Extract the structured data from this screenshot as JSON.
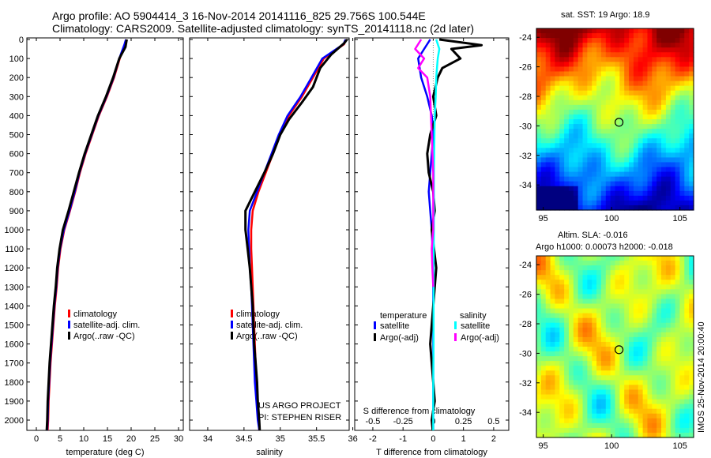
{
  "title": {
    "line1": "Argo profile: AO 5904414_3 16-Nov-2014 20141116_825 29.756S 100.544E",
    "line2": "Climatology: CARS2009. Satellite-adjusted climatology: synTS_20141118.nc (2d later)"
  },
  "colors": {
    "climatology": "#ff0000",
    "satellite": "#0000ff",
    "argo": "#000000",
    "sal_satellite": "#00ffff",
    "sal_argo": "#ff00ff"
  },
  "footer": {
    "project": "US ARGO PROJECT",
    "pi": "PI: STEPHEN RISER",
    "credit": "IMOS 25-Nov-2014 20:00:40"
  },
  "maps": {
    "sst_title": "sat. SST: 19  Argo: 18.9",
    "sla_title1": "Altim. SLA: -0.016",
    "sla_title2": "Argo h1000: 0.00073  h2000: -0.018",
    "xticks": [
      "95",
      "100",
      "105"
    ],
    "yticks": [
      "-24",
      "-26",
      "-28",
      "-30",
      "-32",
      "-34"
    ],
    "marker": {
      "lon": 100.544,
      "lat": -29.756
    }
  },
  "chart_data": [
    {
      "type": "line",
      "xlabel": "temperature (deg C)",
      "ylabel": "",
      "xlim": [
        -2,
        31
      ],
      "ylim": [
        2100,
        0
      ],
      "xticks": [
        "0",
        "5",
        "10",
        "15",
        "20",
        "25",
        "30"
      ],
      "yticks": [
        "0",
        "100",
        "200",
        "300",
        "400",
        "500",
        "600",
        "700",
        "800",
        "900",
        "1000",
        "1100",
        "1200",
        "1300",
        "1400",
        "1500",
        "1600",
        "1700",
        "1800",
        "1900",
        "2000"
      ],
      "legend": [
        "climatology",
        "satellite-adj. clim.",
        "Argo(..raw -QC)"
      ],
      "legend_position": "lower-right",
      "series": [
        {
          "name": "climatology",
          "color": "#ff0000",
          "x": [
            19,
            18.7,
            17.6,
            16.4,
            14.9,
            13.2,
            11.8,
            10.4,
            9.2,
            8.2,
            7.1,
            5.9,
            5.1,
            4.6,
            4.3,
            3.9,
            3.6,
            3.3,
            3.0,
            2.8,
            2.6,
            2.5,
            2.4,
            2.3
          ],
          "y": [
            0,
            25,
            100,
            200,
            300,
            400,
            500,
            600,
            700,
            800,
            900,
            1000,
            1100,
            1200,
            1300,
            1400,
            1500,
            1600,
            1700,
            1800,
            1900,
            2000,
            2050,
            2080
          ]
        },
        {
          "name": "satellite-adj. clim.",
          "color": "#0000ff",
          "x": [
            18.9,
            18.6,
            17.5,
            16.3,
            14.8,
            13.1,
            11.7,
            10.3,
            9.1,
            8.1,
            7.0,
            5.8,
            5.0,
            4.5,
            4.2,
            3.8,
            3.5,
            3.2,
            2.9,
            2.7,
            2.5,
            2.4,
            2.3,
            2.2
          ],
          "y": [
            0,
            25,
            100,
            200,
            300,
            400,
            500,
            600,
            700,
            800,
            900,
            1000,
            1100,
            1200,
            1300,
            1400,
            1500,
            1600,
            1700,
            1800,
            1900,
            2000,
            2050,
            2080
          ]
        },
        {
          "name": "Argo(..raw -QC)",
          "color": "#000000",
          "x": [
            19.1,
            19.0,
            18.8,
            17.5,
            16.2,
            14.7,
            13.0,
            11.6,
            10.2,
            9.0,
            7.9,
            6.8,
            5.6,
            4.9,
            4.4,
            4.1,
            3.7,
            3.4,
            3.1,
            2.8,
            2.6,
            2.4,
            2.3,
            2.2,
            2.1
          ],
          "y": [
            0,
            10,
            40,
            100,
            200,
            300,
            400,
            500,
            600,
            700,
            800,
            900,
            1000,
            1100,
            1200,
            1300,
            1400,
            1500,
            1600,
            1700,
            1800,
            1900,
            2000,
            2050,
            2080
          ]
        }
      ]
    },
    {
      "type": "line",
      "xlabel": "salinity",
      "xlim": [
        33.75,
        35.95
      ],
      "ylim": [
        2100,
        0
      ],
      "xticks": [
        "34",
        "34.5",
        "35",
        "35.5",
        "36"
      ],
      "legend": [
        "climatology",
        "satellite-adj. clim.",
        "Argo(..raw -QC)"
      ],
      "legend_position": "lower-right",
      "series": [
        {
          "name": "climatology",
          "color": "#ff0000",
          "x": [
            35.9,
            35.88,
            35.6,
            35.45,
            35.3,
            35.12,
            35.0,
            34.9,
            34.8,
            34.7,
            34.62,
            34.6,
            34.6,
            34.61,
            34.62,
            34.63,
            34.64,
            34.65,
            34.66,
            34.67,
            34.69,
            34.7,
            34.71,
            34.71
          ],
          "y": [
            0,
            25,
            100,
            200,
            300,
            400,
            500,
            600,
            700,
            800,
            900,
            1000,
            1100,
            1200,
            1300,
            1400,
            1500,
            1600,
            1700,
            1800,
            1900,
            2000,
            2050,
            2080
          ]
        },
        {
          "name": "satellite-adj. clim.",
          "color": "#0000ff",
          "x": [
            35.9,
            35.87,
            35.58,
            35.43,
            35.28,
            35.1,
            34.98,
            34.88,
            34.78,
            34.68,
            34.58,
            34.56,
            34.57,
            34.58,
            34.6,
            34.61,
            34.62,
            34.63,
            34.64,
            34.65,
            34.67,
            34.69,
            34.71,
            34.72
          ],
          "y": [
            0,
            25,
            100,
            200,
            300,
            400,
            500,
            600,
            700,
            800,
            900,
            1000,
            1100,
            1200,
            1300,
            1400,
            1500,
            1600,
            1700,
            1800,
            1900,
            2000,
            2050,
            2080
          ]
        },
        {
          "name": "Argo(..raw -QC)",
          "color": "#000000",
          "x": [
            35.92,
            35.88,
            35.7,
            35.55,
            35.45,
            35.3,
            35.12,
            35.0,
            34.9,
            34.78,
            34.65,
            34.52,
            34.52,
            34.55,
            34.58,
            34.6,
            34.62,
            34.63,
            34.64,
            34.66,
            34.68,
            34.69,
            34.71,
            34.72
          ],
          "y": [
            0,
            20,
            80,
            150,
            250,
            330,
            420,
            500,
            600,
            700,
            800,
            900,
            1000,
            1100,
            1200,
            1300,
            1400,
            1500,
            1600,
            1700,
            1800,
            1900,
            2000,
            2080
          ]
        }
      ]
    },
    {
      "type": "line",
      "xlabel": "T difference from climatology",
      "top_label": "S difference from climatology",
      "xlim": [
        -2.6,
        2.5
      ],
      "ylim": [
        2100,
        0
      ],
      "xticks": [
        "-2",
        "-1",
        "0",
        "1",
        "2"
      ],
      "sticks": [
        "-0.5",
        "-0.25",
        "0",
        "0.25",
        "0.5"
      ],
      "legend_headers": [
        "temperature",
        "salinity"
      ],
      "legend": [
        "satellite",
        "Argo(-adj)",
        "satellite",
        "Argo(-adj)"
      ],
      "legend_position": "lower-right",
      "series": [
        {
          "name": "satellite",
          "color": "#0000ff",
          "x": [
            -0.1,
            -0.3,
            -0.5,
            -0.4,
            -0.2,
            -0.05,
            0.0,
            -0.05,
            -0.1,
            -0.15,
            -0.1,
            -0.05,
            0.0,
            0.0,
            0.0,
            0.0,
            0.0,
            0.0,
            0.0,
            0.0
          ],
          "y": [
            0,
            50,
            100,
            200,
            300,
            400,
            500,
            600,
            700,
            800,
            900,
            1000,
            1200,
            1400,
            1600,
            1800,
            1900,
            2000,
            2050,
            2080
          ]
        },
        {
          "name": "Argo(-adj)",
          "color": "#000000",
          "x": [
            0.2,
            1.6,
            0.6,
            0.9,
            0.3,
            0.15,
            0.0,
            0.1,
            -0.1,
            -0.2,
            -0.15,
            0.0,
            0.05,
            -0.05,
            0.1,
            0.0,
            -0.1,
            0.0,
            0.05,
            -0.05,
            0.0
          ],
          "y": [
            0,
            30,
            50,
            100,
            150,
            200,
            300,
            400,
            500,
            600,
            700,
            800,
            900,
            1000,
            1200,
            1400,
            1600,
            1800,
            1900,
            2000,
            2080
          ]
        },
        {
          "name": "satellite",
          "color": "#00ffff",
          "x": [
            0.1,
            0.2,
            0.15,
            0.1,
            0.08,
            0.05,
            0.04,
            0.03,
            0.02,
            0.02,
            0.02,
            0.01,
            0.01,
            0.01,
            0.0,
            0.0,
            0.0
          ],
          "y": [
            0,
            50,
            100,
            200,
            300,
            400,
            500,
            600,
            700,
            800,
            1000,
            1200,
            1400,
            1600,
            1800,
            2000,
            2080
          ]
        },
        {
          "name": "Argo(-adj)",
          "color": "#ff00ff",
          "x": [
            -0.4,
            -0.6,
            -0.3,
            -0.5,
            -0.2,
            -0.1,
            -0.05,
            0.0,
            0.0,
            0.0,
            -0.05,
            -0.03,
            0.0
          ],
          "y": [
            0,
            50,
            100,
            150,
            200,
            300,
            500,
            700,
            900,
            1000,
            1100,
            1200,
            1300
          ]
        }
      ]
    }
  ]
}
